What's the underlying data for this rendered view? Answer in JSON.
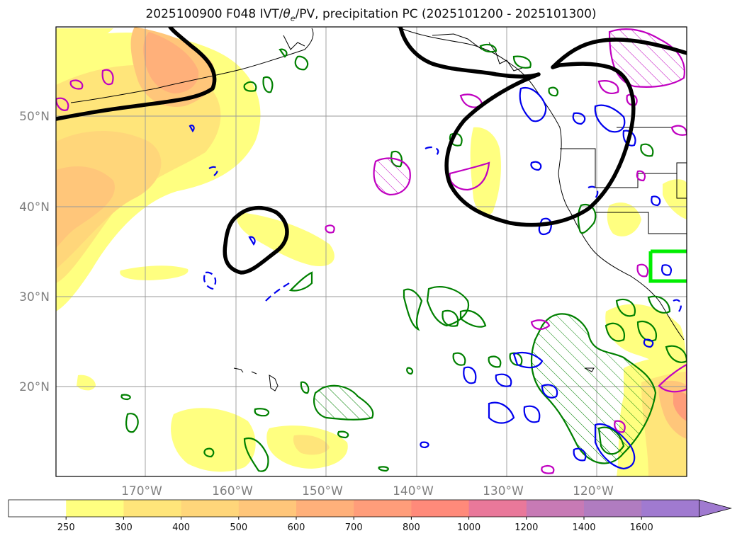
{
  "title": {
    "prefix": "2025100900 F048 IVT/",
    "theta": "θ",
    "sub": "e",
    "suffix": "/PV, precipitation PC (2025101200 - 2025101300)"
  },
  "map": {
    "lon_labels": [
      "170°W",
      "160°W",
      "150°W",
      "140°W",
      "130°W",
      "120°W"
    ],
    "lat_labels": [
      "50°N",
      "40°N",
      "30°N",
      "20°N"
    ],
    "gridlines": true
  },
  "colorbar": {
    "ticks": [
      "250",
      "300",
      "400",
      "500",
      "600",
      "700",
      "800",
      "1000",
      "1200",
      "1400",
      "1600"
    ],
    "colors": [
      "#ffffff",
      "#ffff80",
      "#ffe57a",
      "#ffd67a",
      "#ffc67a",
      "#ffb07a",
      "#ff9d7a",
      "#ff8a7a",
      "#e9789a",
      "#c77ab5",
      "#b07cc0",
      "#a07ad0"
    ],
    "extend": "max"
  },
  "colors": {
    "ivt_fill": "#ffd67a",
    "pv_contour": "#000000",
    "precip_green": "#008000",
    "precip_blue": "#0000ee",
    "precip_magenta": "#c000c0",
    "box": "#00ee00"
  }
}
